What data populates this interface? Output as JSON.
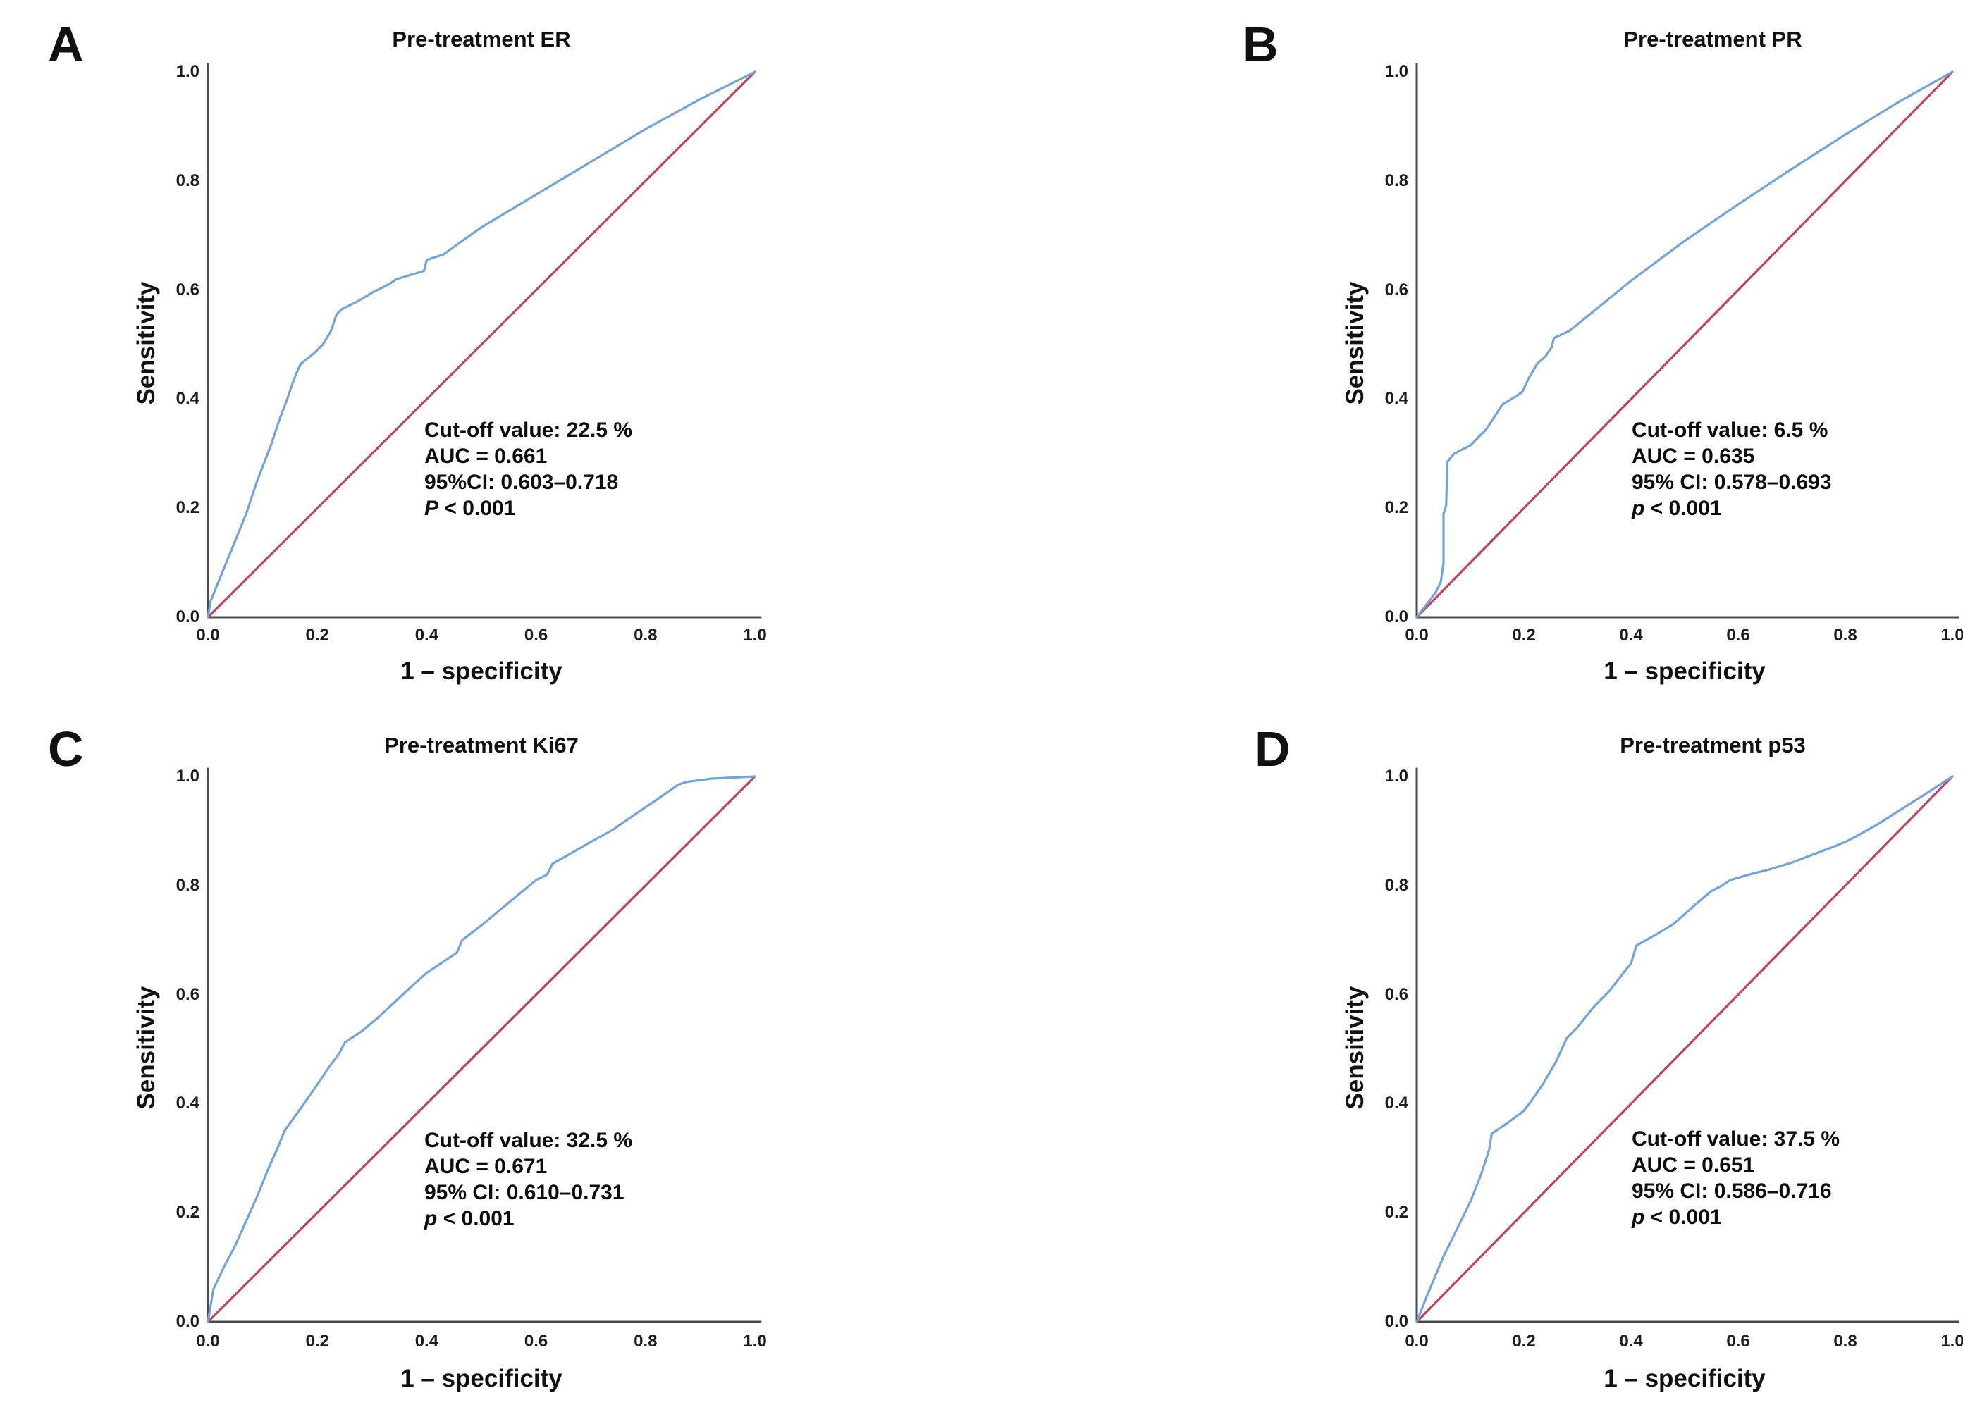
{
  "figure": {
    "background": "#ffffff",
    "colors": {
      "roc_curve": "#72a3dc",
      "reference_line": "#c5405e",
      "axis_line": "#4a4a4a",
      "text": "#111111"
    },
    "axis": {
      "x_label": "1 – specificity",
      "y_label": "Sensitivity",
      "x_ticks": [
        "0.0",
        "0.2",
        "0.4",
        "0.6",
        "0.8",
        "1.0"
      ],
      "y_ticks": [
        "1.0",
        "0.8",
        "0.6",
        "0.4",
        "0.2",
        "0.0"
      ]
    }
  },
  "panels": [
    {
      "letter": "A",
      "title": "Pre-treatment ER",
      "xlabel": "1 – specificity",
      "ylabel": "Sensitivity",
      "stats": {
        "cutoff": "Cut-off value: 22.5 %",
        "auc": "AUC = 0.661",
        "ci": "95%CI: 0.603–0.718",
        "p_symbol": "P",
        "p_rest": " < 0.001"
      }
    },
    {
      "letter": "B",
      "title": "Pre-treatment PR",
      "xlabel": "1 – specificity",
      "ylabel": "Sensitivity",
      "stats": {
        "cutoff": "Cut-off value: 6.5 %",
        "auc": "AUC = 0.635",
        "ci": "95% CI: 0.578–0.693",
        "p_symbol": "p",
        "p_rest": " < 0.001"
      }
    },
    {
      "letter": "C",
      "title": "Pre-treatment Ki67",
      "xlabel": "1 – specificity",
      "ylabel": "Sensitivity",
      "stats": {
        "cutoff": "Cut-off value: 32.5 %",
        "auc": "AUC = 0.671",
        "ci": "95% CI: 0.610–0.731",
        "p_symbol": "p",
        "p_rest": " < 0.001"
      }
    },
    {
      "letter": "D",
      "title": "Pre-treatment p53",
      "xlabel": "1 – specificity",
      "ylabel": "Sensitivity",
      "stats": {
        "cutoff": "Cut-off value: 37.5 %",
        "auc": "AUC = 0.651",
        "ci": "95% CI: 0.586–0.716",
        "p_symbol": "p",
        "p_rest": " < 0.001"
      }
    }
  ],
  "chart_data": [
    {
      "type": "line",
      "panel": "A",
      "title": "Pre-treatment ER",
      "xlabel": "1 – specificity",
      "ylabel": "Sensitivity",
      "xlim": [
        0,
        1
      ],
      "ylim": [
        0,
        1
      ],
      "x_ticks": [
        0.0,
        0.2,
        0.4,
        0.6,
        0.8,
        1.0
      ],
      "y_ticks": [
        0.0,
        0.2,
        0.4,
        0.6,
        0.8,
        1.0
      ],
      "grid": false,
      "legend": "none",
      "cutoff_value_percent": 22.5,
      "auc": 0.661,
      "ci95": [
        0.603,
        0.718
      ],
      "p_value": "< 0.001",
      "series": [
        {
          "name": "ROC curve",
          "color": "#72a3dc",
          "points": [
            [
              0,
              0
            ],
            [
              0.005,
              0.03
            ],
            [
              0.06,
              0.165
            ],
            [
              0.07,
              0.19
            ],
            [
              0.09,
              0.25
            ],
            [
              0.115,
              0.315
            ],
            [
              0.13,
              0.36
            ],
            [
              0.145,
              0.4
            ],
            [
              0.155,
              0.43
            ],
            [
              0.165,
              0.455
            ],
            [
              0.17,
              0.465
            ],
            [
              0.195,
              0.485
            ],
            [
              0.21,
              0.5
            ],
            [
              0.225,
              0.525
            ],
            [
              0.235,
              0.555
            ],
            [
              0.245,
              0.565
            ],
            [
              0.275,
              0.58
            ],
            [
              0.3,
              0.595
            ],
            [
              0.33,
              0.61
            ],
            [
              0.345,
              0.62
            ],
            [
              0.395,
              0.635
            ],
            [
              0.4,
              0.655
            ],
            [
              0.43,
              0.665
            ],
            [
              0.5,
              0.715
            ],
            [
              0.6,
              0.775
            ],
            [
              0.7,
              0.835
            ],
            [
              0.8,
              0.895
            ],
            [
              0.9,
              0.95
            ],
            [
              1,
              1
            ]
          ]
        },
        {
          "name": "Reference diagonal",
          "color": "#c5405e",
          "points": [
            [
              0,
              0
            ],
            [
              1,
              1
            ]
          ]
        }
      ]
    },
    {
      "type": "line",
      "panel": "B",
      "title": "Pre-treatment PR",
      "xlabel": "1 – specificity",
      "ylabel": "Sensitivity",
      "xlim": [
        0,
        1
      ],
      "ylim": [
        0,
        1
      ],
      "x_ticks": [
        0.0,
        0.2,
        0.4,
        0.6,
        0.8,
        1.0
      ],
      "y_ticks": [
        0.0,
        0.2,
        0.4,
        0.6,
        0.8,
        1.0
      ],
      "grid": false,
      "legend": "none",
      "cutoff_value_percent": 6.5,
      "auc": 0.635,
      "ci95": [
        0.578,
        0.693
      ],
      "p_value": "< 0.001",
      "series": [
        {
          "name": "ROC curve",
          "color": "#72a3dc",
          "points": [
            [
              0,
              0
            ],
            [
              0.035,
              0.045
            ],
            [
              0.045,
              0.065
            ],
            [
              0.05,
              0.1
            ],
            [
              0.05,
              0.19
            ],
            [
              0.055,
              0.205
            ],
            [
              0.057,
              0.285
            ],
            [
              0.07,
              0.3
            ],
            [
              0.1,
              0.315
            ],
            [
              0.11,
              0.325
            ],
            [
              0.13,
              0.345
            ],
            [
              0.15,
              0.375
            ],
            [
              0.16,
              0.39
            ],
            [
              0.185,
              0.405
            ],
            [
              0.197,
              0.413
            ],
            [
              0.21,
              0.44
            ],
            [
              0.225,
              0.465
            ],
            [
              0.24,
              0.478
            ],
            [
              0.252,
              0.495
            ],
            [
              0.256,
              0.512
            ],
            [
              0.285,
              0.525
            ],
            [
              0.32,
              0.553
            ],
            [
              0.4,
              0.617
            ],
            [
              0.5,
              0.69
            ],
            [
              0.6,
              0.757
            ],
            [
              0.7,
              0.822
            ],
            [
              0.8,
              0.885
            ],
            [
              0.9,
              0.945
            ],
            [
              1,
              1
            ]
          ]
        },
        {
          "name": "Reference diagonal",
          "color": "#c5405e",
          "points": [
            [
              0,
              0
            ],
            [
              1,
              1
            ]
          ]
        }
      ]
    },
    {
      "type": "line",
      "panel": "C",
      "title": "Pre-treatment Ki67",
      "xlabel": "1 – specificity",
      "ylabel": "Sensitivity",
      "xlim": [
        0,
        1
      ],
      "ylim": [
        0,
        1
      ],
      "x_ticks": [
        0.0,
        0.2,
        0.4,
        0.6,
        0.8,
        1.0
      ],
      "y_ticks": [
        0.0,
        0.2,
        0.4,
        0.6,
        0.8,
        1.0
      ],
      "grid": false,
      "legend": "none",
      "cutoff_value_percent": 32.5,
      "auc": 0.671,
      "ci95": [
        0.61,
        0.731
      ],
      "p_value": "< 0.001",
      "series": [
        {
          "name": "ROC curve",
          "color": "#72a3dc",
          "points": [
            [
              0,
              0
            ],
            [
              0.01,
              0.06
            ],
            [
              0.03,
              0.102
            ],
            [
              0.05,
              0.14
            ],
            [
              0.07,
              0.185
            ],
            [
              0.09,
              0.23
            ],
            [
              0.11,
              0.28
            ],
            [
              0.13,
              0.325
            ],
            [
              0.14,
              0.35
            ],
            [
              0.17,
              0.392
            ],
            [
              0.2,
              0.435
            ],
            [
              0.22,
              0.465
            ],
            [
              0.24,
              0.492
            ],
            [
              0.25,
              0.512
            ],
            [
              0.28,
              0.532
            ],
            [
              0.31,
              0.557
            ],
            [
              0.34,
              0.585
            ],
            [
              0.37,
              0.613
            ],
            [
              0.4,
              0.64
            ],
            [
              0.43,
              0.66
            ],
            [
              0.455,
              0.677
            ],
            [
              0.465,
              0.7
            ],
            [
              0.5,
              0.727
            ],
            [
              0.53,
              0.752
            ],
            [
              0.56,
              0.777
            ],
            [
              0.6,
              0.81
            ],
            [
              0.62,
              0.82
            ],
            [
              0.63,
              0.84
            ],
            [
              0.66,
              0.857
            ],
            [
              0.7,
              0.88
            ],
            [
              0.74,
              0.902
            ],
            [
              0.78,
              0.93
            ],
            [
              0.82,
              0.957
            ],
            [
              0.86,
              0.985
            ],
            [
              0.875,
              0.99
            ],
            [
              0.92,
              0.996
            ],
            [
              1,
              1
            ]
          ]
        },
        {
          "name": "Reference diagonal",
          "color": "#c5405e",
          "points": [
            [
              0,
              0
            ],
            [
              1,
              1
            ]
          ]
        }
      ]
    },
    {
      "type": "line",
      "panel": "D",
      "title": "Pre-treatment p53",
      "xlabel": "1 – specificity",
      "ylabel": "Sensitivity",
      "xlim": [
        0,
        1
      ],
      "ylim": [
        0,
        1
      ],
      "x_ticks": [
        0.0,
        0.2,
        0.4,
        0.6,
        0.8,
        1.0
      ],
      "y_ticks": [
        0.0,
        0.2,
        0.4,
        0.6,
        0.8,
        1.0
      ],
      "grid": false,
      "legend": "none",
      "cutoff_value_percent": 37.5,
      "auc": 0.651,
      "ci95": [
        0.586,
        0.716
      ],
      "p_value": "< 0.001",
      "series": [
        {
          "name": "ROC curve",
          "color": "#72a3dc",
          "points": [
            [
              0,
              0
            ],
            [
              0.02,
              0.05
            ],
            [
              0.05,
              0.12
            ],
            [
              0.08,
              0.18
            ],
            [
              0.1,
              0.22
            ],
            [
              0.12,
              0.27
            ],
            [
              0.135,
              0.315
            ],
            [
              0.14,
              0.345
            ],
            [
              0.17,
              0.365
            ],
            [
              0.2,
              0.387
            ],
            [
              0.21,
              0.4
            ],
            [
              0.235,
              0.435
            ],
            [
              0.26,
              0.477
            ],
            [
              0.28,
              0.52
            ],
            [
              0.3,
              0.54
            ],
            [
              0.33,
              0.577
            ],
            [
              0.36,
              0.607
            ],
            [
              0.39,
              0.645
            ],
            [
              0.4,
              0.657
            ],
            [
              0.41,
              0.69
            ],
            [
              0.45,
              0.712
            ],
            [
              0.48,
              0.73
            ],
            [
              0.52,
              0.765
            ],
            [
              0.55,
              0.79
            ],
            [
              0.57,
              0.8
            ],
            [
              0.585,
              0.81
            ],
            [
              0.62,
              0.82
            ],
            [
              0.66,
              0.83
            ],
            [
              0.7,
              0.842
            ],
            [
              0.74,
              0.857
            ],
            [
              0.78,
              0.872
            ],
            [
              0.8,
              0.88
            ],
            [
              0.82,
              0.89
            ],
            [
              0.86,
              0.912
            ],
            [
              0.9,
              0.937
            ],
            [
              0.95,
              0.968
            ],
            [
              1,
              1
            ]
          ]
        },
        {
          "name": "Reference diagonal",
          "color": "#c5405e",
          "points": [
            [
              0,
              0
            ],
            [
              1,
              1
            ]
          ]
        }
      ]
    }
  ]
}
